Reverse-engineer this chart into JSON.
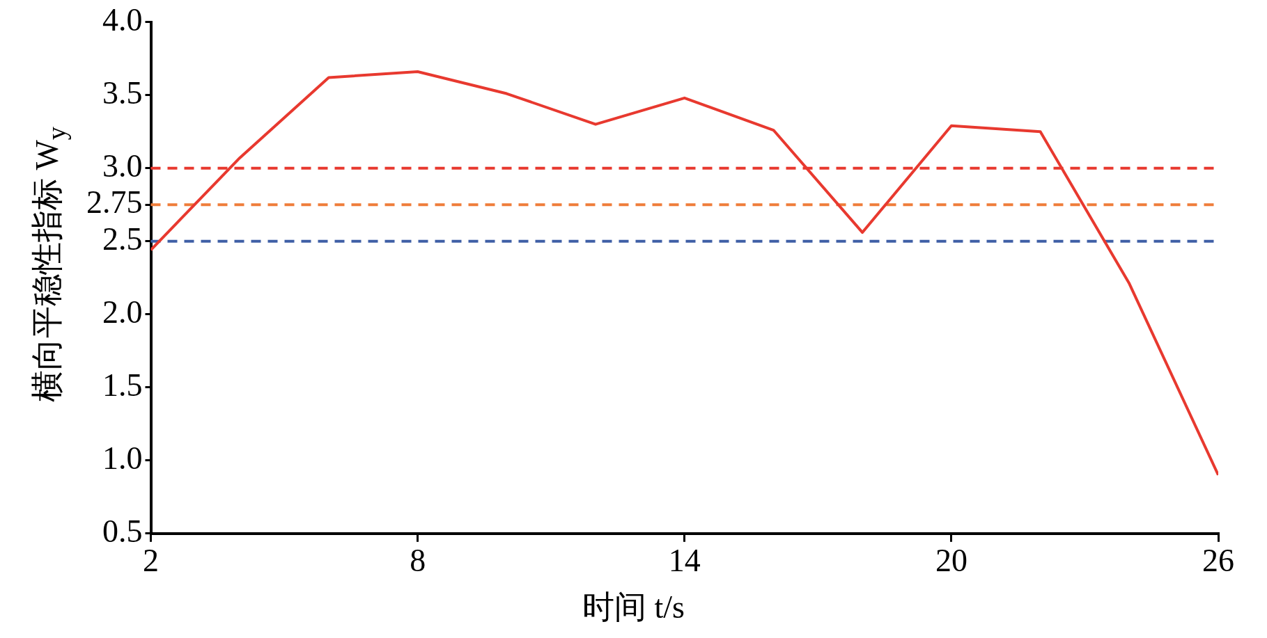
{
  "chart_data": {
    "type": "line",
    "xlabel": "时间 t/s",
    "ylabel": "横向平稳性指标 W$_{y}$",
    "x": [
      2,
      4,
      6,
      8,
      10,
      12,
      14,
      16,
      18,
      20,
      22,
      24,
      26
    ],
    "series": [
      {
        "color": "#e8392f",
        "values": [
          2.44,
          3.07,
          3.62,
          3.66,
          3.51,
          3.3,
          3.48,
          3.26,
          2.56,
          3.29,
          3.25,
          2.21,
          0.9
        ]
      }
    ],
    "xlim": [
      2,
      26
    ],
    "xticks": [
      2,
      8,
      14,
      20,
      26
    ],
    "ylim": [
      0.5,
      4.0
    ],
    "yticks": [
      {
        "value": 0.5,
        "label": "0.5"
      },
      {
        "value": 1.0,
        "label": "1.0"
      },
      {
        "value": 1.5,
        "label": "1.5"
      },
      {
        "value": 2.0,
        "label": "2.0"
      },
      {
        "value": 2.5,
        "label": "2.5"
      },
      {
        "value": 2.75,
        "label": "2.75"
      },
      {
        "value": 3.0,
        "label": "3.0"
      },
      {
        "value": 3.5,
        "label": "3.5"
      },
      {
        "value": 4.0,
        "label": "4.0"
      }
    ],
    "ref_lines": [
      {
        "axis": "y",
        "value": 3.0,
        "color": "#e8392f",
        "line_style": "dashed"
      },
      {
        "axis": "y",
        "value": 2.75,
        "color": "#ef7d3a",
        "line_style": "dashed"
      },
      {
        "axis": "y",
        "value": 2.5,
        "color": "#3f5fa6",
        "line_style": "dashed"
      }
    ],
    "grid": false,
    "legend": false,
    "marker": "none",
    "line_style": "solid"
  }
}
